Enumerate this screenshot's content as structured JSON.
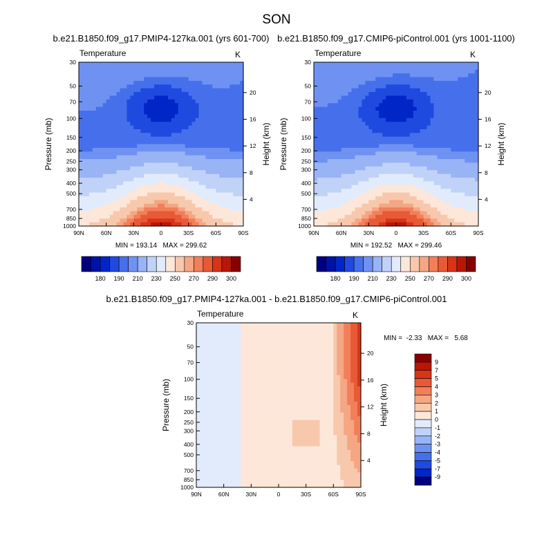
{
  "page_title": "SON",
  "chart_data": [
    {
      "type": "heatmap",
      "title": "b.e21.B1850.f09_g17.PMIP4-127ka.001 (yrs 601-700)",
      "variable": "Temperature",
      "units": "K",
      "ylabel": "Pressure (mb)",
      "ylabel_right": "Height (km)",
      "x_ticks": [
        "90N",
        "60N",
        "30N",
        "0",
        "30S",
        "60S",
        "90S"
      ],
      "y_ticks": [
        30,
        50,
        70,
        100,
        150,
        200,
        250,
        300,
        400,
        500,
        700,
        850,
        1000
      ],
      "y_scale": "log",
      "height_ticks": [
        20,
        16,
        12,
        8,
        4
      ],
      "stats": "MIN = 193.14   MAX = 299.62",
      "min": 193.14,
      "max": 299.62,
      "colorbar_labels": [
        180,
        190,
        210,
        230,
        250,
        270,
        290,
        300
      ],
      "colorbar_colors": [
        "#00007f",
        "#0012a6",
        "#0026c8",
        "#1f4ae0",
        "#4670eb",
        "#6f92f2",
        "#98b4f5",
        "#c0d2f7",
        "#e2ebfb",
        "#fde7d9",
        "#f8c8ac",
        "#f5a683",
        "#f27f5a",
        "#e85a36",
        "#d83418",
        "#b81708",
        "#860000"
      ],
      "region_values": [
        {
          "region": "surface tropics (1000 mb, 30N-30S)",
          "value": 299.6
        },
        {
          "region": "tropical tropopause (100 mb, Eq)",
          "value": 193.1
        },
        {
          "region": "500 mb mid-latitudes",
          "value": 255
        },
        {
          "region": "90S column",
          "value": 215
        }
      ]
    },
    {
      "type": "heatmap",
      "title": "b.e21.B1850.f09_g17.CMIP6-piControl.001 (yrs 1001-1100)",
      "variable": "Temperature",
      "units": "K",
      "ylabel": "Pressure (mb)",
      "ylabel_right": "Height (km)",
      "x_ticks": [
        "90N",
        "60N",
        "30N",
        "0",
        "30S",
        "60S",
        "90S"
      ],
      "y_ticks": [
        30,
        50,
        70,
        100,
        150,
        200,
        250,
        300,
        400,
        500,
        700,
        850,
        1000
      ],
      "y_scale": "log",
      "height_ticks": [
        20,
        16,
        12,
        8,
        4
      ],
      "stats": "MIN = 192.52   MAX = 299.46",
      "min": 192.52,
      "max": 299.46,
      "colorbar_labels": [
        180,
        190,
        210,
        230,
        250,
        270,
        290,
        300
      ],
      "colorbar_colors": [
        "#00007f",
        "#0012a6",
        "#0026c8",
        "#1f4ae0",
        "#4670eb",
        "#6f92f2",
        "#98b4f5",
        "#c0d2f7",
        "#e2ebfb",
        "#fde7d9",
        "#f8c8ac",
        "#f5a683",
        "#f27f5a",
        "#e85a36",
        "#d83418",
        "#b81708",
        "#860000"
      ],
      "region_values": [
        {
          "region": "surface tropics (1000 mb, 30N-30S)",
          "value": 299.5
        },
        {
          "region": "tropical tropopause (100 mb, Eq)",
          "value": 192.5
        },
        {
          "region": "500 mb mid-latitudes",
          "value": 255
        },
        {
          "region": "90S column",
          "value": 212
        }
      ]
    },
    {
      "type": "heatmap",
      "title": "b.e21.B1850.f09_g17.PMIP4-127ka.001 - b.e21.B1850.f09_g17.CMIP6-piControl.001",
      "variable": "Temperature",
      "units": "K",
      "ylabel": "Pressure (mb)",
      "ylabel_right": "Height (km)",
      "x_ticks": [
        "90N",
        "60N",
        "30N",
        "0",
        "30S",
        "60S",
        "90S"
      ],
      "y_ticks": [
        30,
        50,
        70,
        100,
        150,
        200,
        250,
        300,
        400,
        500,
        700,
        850,
        1000
      ],
      "y_scale": "log",
      "height_ticks": [
        20,
        16,
        12,
        8,
        4
      ],
      "stats": "MIN =  -2.33   MAX =   5.68",
      "min": -2.33,
      "max": 5.68,
      "colorbar_labels": [
        9,
        7,
        5,
        4,
        3,
        2,
        1,
        0,
        -1,
        -2,
        -3,
        -4,
        -5,
        -7,
        -9
      ],
      "colorbar_colors": [
        "#860000",
        "#b81708",
        "#d83418",
        "#e85a36",
        "#f27f5a",
        "#f5a683",
        "#f8c8ac",
        "#fde7d9",
        "#e2ebfb",
        "#c0d2f7",
        "#98b4f5",
        "#6f92f2",
        "#4670eb",
        "#1f4ae0",
        "#0026c8",
        "#00007f"
      ],
      "region_values": [
        {
          "region": "90S upper troposphere/stratosphere",
          "value": 5.0
        },
        {
          "region": "60S-90S 100-1000 mb",
          "value": 2.5
        },
        {
          "region": "tropics and southern mid-latitudes",
          "value": 0.5
        },
        {
          "region": "northern high latitudes",
          "value": -0.5
        }
      ]
    }
  ]
}
